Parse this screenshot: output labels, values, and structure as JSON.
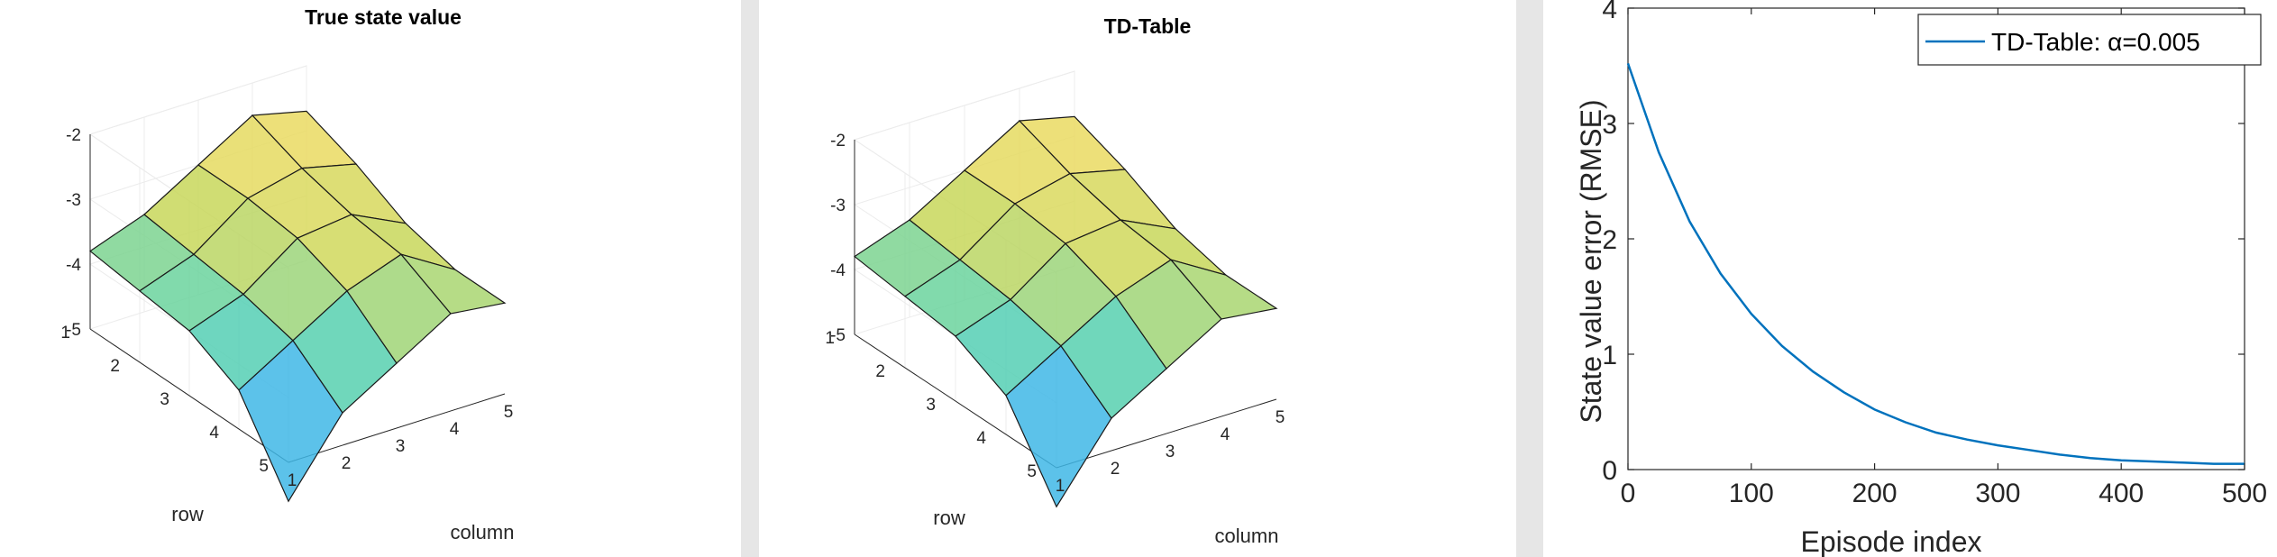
{
  "chart_data": [
    {
      "type": "surface",
      "title": "True state value",
      "xlabel": "column",
      "ylabel": "row",
      "x_ticks": [
        "1",
        "2",
        "3",
        "4",
        "5"
      ],
      "y_ticks": [
        "1",
        "2",
        "3",
        "4",
        "5"
      ],
      "z_ticks": [
        "-2",
        "-3",
        "-4",
        "-5"
      ],
      "zlim": [
        -5,
        -2
      ],
      "z": [
        [
          -3.8,
          -3.5,
          -3.0,
          -2.5,
          -2.7
        ],
        [
          -3.9,
          -3.6,
          -3.0,
          -2.8,
          -3.0
        ],
        [
          -4.0,
          -3.7,
          -3.1,
          -3.0,
          -3.4
        ],
        [
          -4.4,
          -3.9,
          -3.4,
          -3.1,
          -3.6
        ],
        [
          -5.6,
          -4.5,
          -4.0,
          -3.5,
          -3.6
        ]
      ]
    },
    {
      "type": "surface",
      "title": "TD-Table",
      "xlabel": "column",
      "ylabel": "row",
      "x_ticks": [
        "1",
        "2",
        "3",
        "4",
        "5"
      ],
      "y_ticks": [
        "1",
        "2",
        "3",
        "4",
        "5"
      ],
      "z_ticks": [
        "-2",
        "-3",
        "-4",
        "-5"
      ],
      "zlim": [
        -5,
        -2
      ],
      "z": [
        [
          -3.8,
          -3.5,
          -3.0,
          -2.5,
          -2.7
        ],
        [
          -3.9,
          -3.6,
          -3.0,
          -2.8,
          -3.0
        ],
        [
          -4.0,
          -3.7,
          -3.1,
          -3.0,
          -3.4
        ],
        [
          -4.4,
          -3.9,
          -3.4,
          -3.1,
          -3.6
        ],
        [
          -5.6,
          -4.5,
          -4.0,
          -3.5,
          -3.6
        ]
      ]
    },
    {
      "type": "line",
      "xlabel": "Episode index",
      "ylabel": "State value error (RMSE)",
      "xlim": [
        0,
        500
      ],
      "ylim": [
        0,
        4
      ],
      "x_ticks": [
        "0",
        "100",
        "200",
        "300",
        "400",
        "500"
      ],
      "y_ticks": [
        "0",
        "1",
        "2",
        "3",
        "4"
      ],
      "legend": "TD-Table: α=0.005",
      "legend_position": "top-right",
      "series": [
        {
          "name": "TD-Table: α=0.005",
          "color": "#0072bd",
          "x": [
            0,
            25,
            50,
            75,
            100,
            125,
            150,
            175,
            200,
            225,
            250,
            275,
            300,
            325,
            350,
            375,
            400,
            425,
            450,
            475,
            500
          ],
          "y": [
            3.52,
            2.75,
            2.15,
            1.7,
            1.35,
            1.07,
            0.85,
            0.67,
            0.52,
            0.41,
            0.32,
            0.26,
            0.21,
            0.17,
            0.13,
            0.1,
            0.08,
            0.07,
            0.06,
            0.05,
            0.05
          ]
        }
      ]
    }
  ]
}
